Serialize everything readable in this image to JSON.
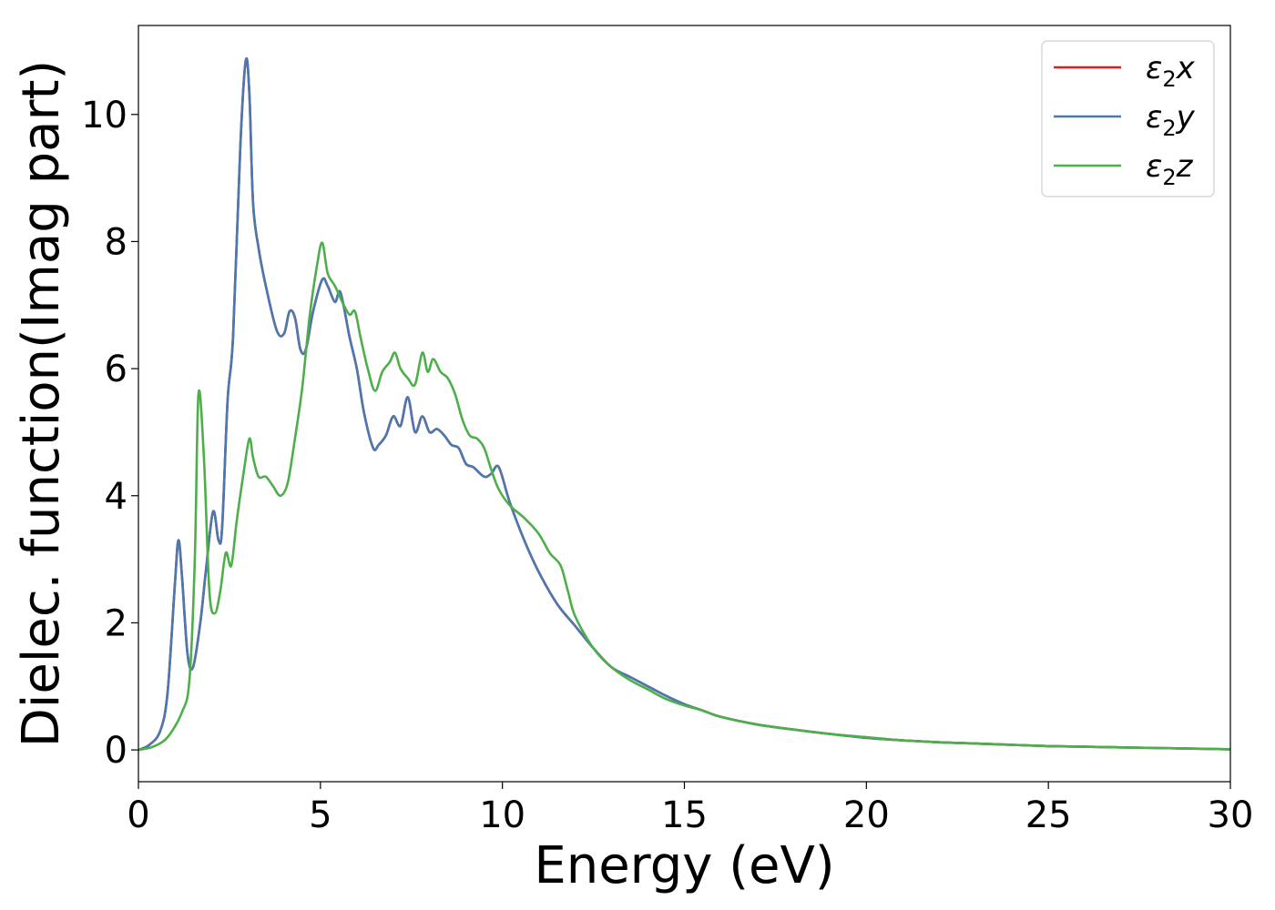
{
  "chart_data": {
    "type": "line",
    "title": "",
    "xlabel": "Energy (eV)",
    "ylabel": "Dielec. function(Imag part)",
    "xlim": [
      0,
      30
    ],
    "ylim": [
      -0.5,
      11.4
    ],
    "xticks": [
      0,
      5,
      10,
      15,
      20,
      25,
      30
    ],
    "yticks": [
      0,
      2,
      4,
      6,
      8,
      10
    ],
    "grid": false,
    "legend_position": "top-right",
    "series": [
      {
        "name": "ε₂x",
        "label_base": "ε",
        "label_sub": "2",
        "label_var": "x",
        "color": "#e41a1c",
        "x": [
          0,
          0.3,
          0.6,
          0.8,
          1.0,
          1.1,
          1.2,
          1.35,
          1.5,
          1.7,
          1.85,
          2.05,
          2.2,
          2.3,
          2.45,
          2.6,
          2.8,
          2.95,
          3.05,
          3.15,
          3.3,
          3.5,
          3.8,
          4.0,
          4.15,
          4.3,
          4.45,
          4.6,
          4.8,
          5.05,
          5.2,
          5.4,
          5.55,
          5.8,
          6.0,
          6.2,
          6.45,
          6.6,
          6.8,
          7.0,
          7.2,
          7.4,
          7.6,
          7.8,
          8.0,
          8.2,
          8.4,
          8.6,
          8.8,
          9.0,
          9.2,
          9.5,
          9.7,
          9.9,
          10.2,
          10.6,
          11.0,
          11.5,
          12.0,
          12.5,
          13.0,
          13.5,
          14.0,
          14.5,
          15.0,
          15.5,
          16.0,
          17.0,
          18.0,
          19.0,
          20.0,
          21.0,
          22.0,
          23.0,
          24.0,
          25.0,
          26.0,
          27.0,
          28.0,
          29.0,
          30.0
        ],
        "values": [
          0,
          0.08,
          0.3,
          0.9,
          2.6,
          3.3,
          2.7,
          1.5,
          1.3,
          2.0,
          2.8,
          3.75,
          3.3,
          3.5,
          5.5,
          6.5,
          9.5,
          10.85,
          10.3,
          8.6,
          7.9,
          7.3,
          6.6,
          6.55,
          6.9,
          6.8,
          6.3,
          6.3,
          6.9,
          7.4,
          7.3,
          7.05,
          7.2,
          6.5,
          6.0,
          5.3,
          4.75,
          4.8,
          4.95,
          5.25,
          5.1,
          5.55,
          5.0,
          5.25,
          5.0,
          5.05,
          4.95,
          4.8,
          4.75,
          4.5,
          4.45,
          4.3,
          4.35,
          4.45,
          3.9,
          3.3,
          2.8,
          2.3,
          1.95,
          1.6,
          1.3,
          1.15,
          1.0,
          0.85,
          0.72,
          0.62,
          0.52,
          0.4,
          0.32,
          0.25,
          0.19,
          0.15,
          0.12,
          0.1,
          0.08,
          0.06,
          0.05,
          0.04,
          0.03,
          0.02,
          0.01
        ]
      },
      {
        "name": "ε₂y",
        "label_base": "ε",
        "label_sub": "2",
        "label_var": "y",
        "color": "#4a78b0",
        "x": [
          0,
          0.3,
          0.6,
          0.8,
          1.0,
          1.1,
          1.2,
          1.35,
          1.5,
          1.7,
          1.85,
          2.05,
          2.2,
          2.3,
          2.45,
          2.6,
          2.8,
          2.95,
          3.05,
          3.15,
          3.3,
          3.5,
          3.8,
          4.0,
          4.15,
          4.3,
          4.45,
          4.6,
          4.8,
          5.05,
          5.2,
          5.4,
          5.55,
          5.8,
          6.0,
          6.2,
          6.45,
          6.6,
          6.8,
          7.0,
          7.2,
          7.4,
          7.6,
          7.8,
          8.0,
          8.2,
          8.4,
          8.6,
          8.8,
          9.0,
          9.2,
          9.5,
          9.7,
          9.9,
          10.2,
          10.6,
          11.0,
          11.5,
          12.0,
          12.5,
          13.0,
          13.5,
          14.0,
          14.5,
          15.0,
          15.5,
          16.0,
          17.0,
          18.0,
          19.0,
          20.0,
          21.0,
          22.0,
          23.0,
          24.0,
          25.0,
          26.0,
          27.0,
          28.0,
          29.0,
          30.0
        ],
        "values": [
          0,
          0.08,
          0.3,
          0.9,
          2.6,
          3.3,
          2.7,
          1.5,
          1.3,
          2.0,
          2.8,
          3.75,
          3.3,
          3.5,
          5.5,
          6.5,
          9.5,
          10.85,
          10.3,
          8.6,
          7.9,
          7.3,
          6.6,
          6.55,
          6.9,
          6.8,
          6.3,
          6.3,
          6.9,
          7.4,
          7.3,
          7.05,
          7.2,
          6.5,
          6.0,
          5.3,
          4.75,
          4.8,
          4.95,
          5.25,
          5.1,
          5.55,
          5.0,
          5.25,
          5.0,
          5.05,
          4.95,
          4.8,
          4.75,
          4.5,
          4.45,
          4.3,
          4.35,
          4.45,
          3.9,
          3.3,
          2.8,
          2.3,
          1.95,
          1.6,
          1.3,
          1.15,
          1.0,
          0.85,
          0.72,
          0.62,
          0.52,
          0.4,
          0.32,
          0.25,
          0.19,
          0.15,
          0.12,
          0.1,
          0.08,
          0.06,
          0.05,
          0.04,
          0.03,
          0.02,
          0.01
        ]
      },
      {
        "name": "ε₂z",
        "label_base": "ε",
        "label_sub": "2",
        "label_var": "z",
        "color": "#4daf4a",
        "x": [
          0,
          0.4,
          0.8,
          1.2,
          1.4,
          1.55,
          1.65,
          1.8,
          1.95,
          2.1,
          2.25,
          2.4,
          2.55,
          2.7,
          2.9,
          3.05,
          3.15,
          3.3,
          3.5,
          3.7,
          3.9,
          4.1,
          4.3,
          4.5,
          4.7,
          4.9,
          5.05,
          5.2,
          5.4,
          5.6,
          5.8,
          5.95,
          6.1,
          6.3,
          6.5,
          6.7,
          6.9,
          7.05,
          7.2,
          7.4,
          7.6,
          7.8,
          7.95,
          8.1,
          8.3,
          8.5,
          8.7,
          8.9,
          9.1,
          9.3,
          9.5,
          9.7,
          9.9,
          10.2,
          10.6,
          11.0,
          11.3,
          11.6,
          11.8,
          12.0,
          12.5,
          13.0,
          13.5,
          14.0,
          14.5,
          15.0,
          15.5,
          16.0,
          17.0,
          18.0,
          19.0,
          20.0,
          21.0,
          22.0,
          23.0,
          24.0,
          25.0,
          26.0,
          27.0,
          28.0,
          29.0,
          30.0
        ],
        "values": [
          0,
          0.05,
          0.2,
          0.6,
          1.1,
          3.0,
          5.6,
          4.6,
          2.5,
          2.15,
          2.5,
          3.1,
          2.9,
          3.6,
          4.4,
          4.9,
          4.6,
          4.3,
          4.3,
          4.15,
          4.0,
          4.2,
          4.9,
          5.7,
          6.8,
          7.6,
          7.98,
          7.5,
          7.3,
          7.05,
          6.85,
          6.9,
          6.5,
          6.0,
          5.65,
          5.95,
          6.1,
          6.25,
          6.0,
          5.85,
          5.75,
          6.25,
          5.95,
          6.15,
          5.95,
          5.85,
          5.6,
          5.2,
          4.95,
          4.9,
          4.75,
          4.4,
          4.1,
          3.85,
          3.65,
          3.4,
          3.1,
          2.9,
          2.5,
          2.1,
          1.6,
          1.3,
          1.1,
          0.95,
          0.8,
          0.7,
          0.62,
          0.52,
          0.4,
          0.32,
          0.25,
          0.2,
          0.15,
          0.12,
          0.1,
          0.08,
          0.06,
          0.05,
          0.04,
          0.03,
          0.02,
          0.01
        ]
      }
    ]
  }
}
